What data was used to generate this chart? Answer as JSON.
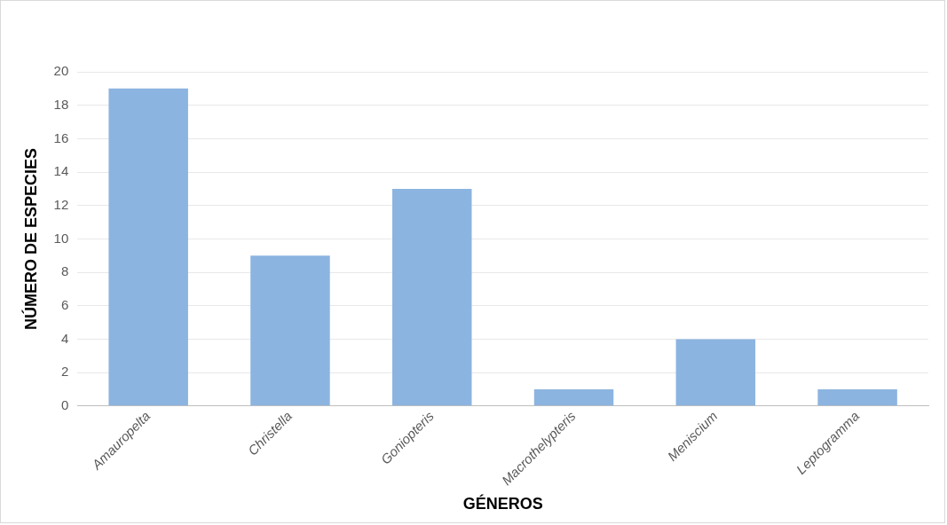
{
  "chart_data": {
    "type": "bar",
    "xlabel": "GÉNEROS",
    "ylabel": "NÚMERO DE ESPECIES",
    "categories": [
      "Amauropelta",
      "Christella",
      "Goniopteris",
      "Macrothelypteris",
      "Meniscium",
      "Leptogramma"
    ],
    "values": [
      19,
      9,
      13,
      1,
      4,
      1
    ],
    "color": "#8cb4e0",
    "ylim": [
      0,
      20
    ],
    "yticks": [
      0,
      2,
      4,
      6,
      8,
      10,
      12,
      14,
      16,
      18,
      20
    ],
    "grid": "y",
    "legend": false
  }
}
